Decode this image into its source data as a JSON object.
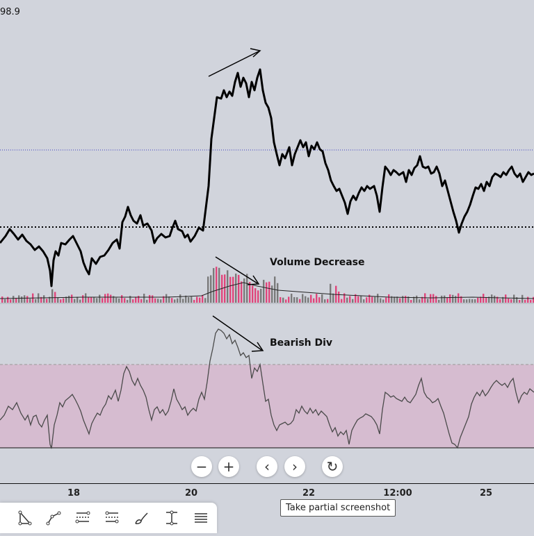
{
  "price_label": "98.9",
  "annotations": {
    "volume": "Volume Decrease",
    "rsi": "Bearish Div"
  },
  "time_axis": {
    "labels": [
      "18",
      "20",
      "22",
      "12:00",
      "25"
    ]
  },
  "navigation": {
    "zoom_out": "−",
    "zoom_in": "+",
    "scroll_left": "‹",
    "scroll_right": "›",
    "reset": "↻"
  },
  "toolbar": {
    "tools": [
      "triangle-icon",
      "path-icon",
      "fib-retracement-icon",
      "fib-extension-icon",
      "brush-icon",
      "vertical-range-icon",
      "menu-lines-icon"
    ]
  },
  "tooltip": {
    "text": "Take partial screenshot"
  },
  "colors": {
    "background": "#d1d4dc",
    "price_line": "#000000",
    "volume_up": "#e0457b",
    "volume_down": "#7a7a7a",
    "rsi_band": "#d6bcd0",
    "rsi_line": "#4a4a4a"
  }
}
